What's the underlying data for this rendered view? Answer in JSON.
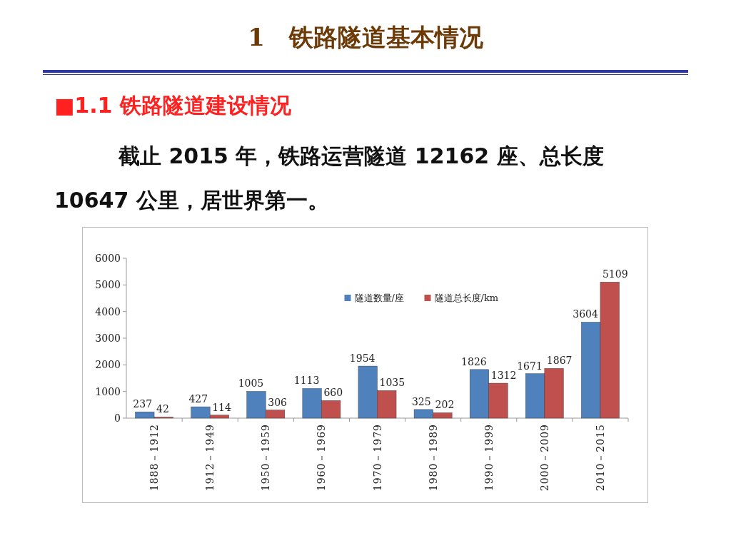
{
  "chart_data": {
    "type": "bar",
    "title": "1　铁路隧道基本情况",
    "subtitle": "■1.1 铁路隧道建设情况",
    "annotations": [
      "截止 2015 年，铁路运营隧道 12162 座、总长度 10647 公里，居世界第一。"
    ],
    "categories": [
      "1888－1912",
      "1912－1949",
      "1950－1959",
      "1960－1969",
      "1970－1979",
      "1980－1989",
      "1990－1999",
      "2000－2009",
      "2010－2015"
    ],
    "series": [
      {
        "name": "隧道数量/座",
        "color": "#4f81bd",
        "values": [
          237,
          427,
          1005,
          1113,
          1954,
          325,
          1826,
          1671,
          3604
        ]
      },
      {
        "name": "隧道总长度/km",
        "color": "#c0504d",
        "values": [
          42,
          114,
          306,
          660,
          1035,
          202,
          1312,
          1867,
          5109
        ]
      }
    ],
    "ylim": [
      0,
      6000
    ],
    "yticks": [
      0,
      1000,
      2000,
      3000,
      4000,
      5000,
      6000
    ],
    "data_labels": true,
    "legend": "top",
    "grid": false
  }
}
